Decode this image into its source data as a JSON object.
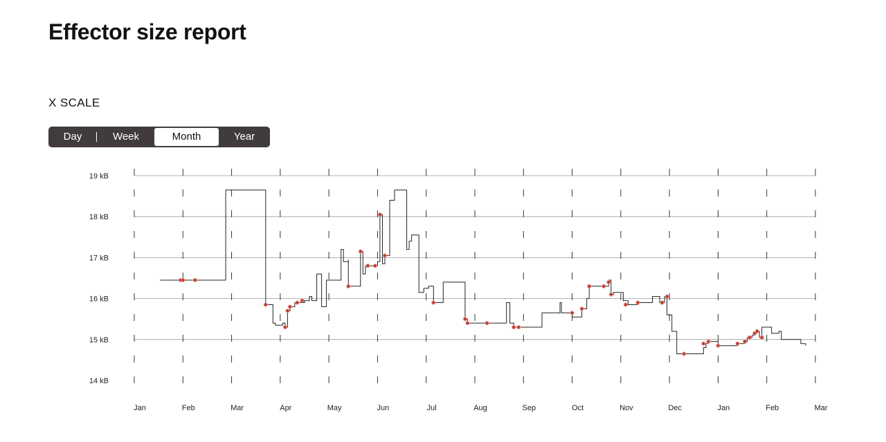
{
  "header": {
    "title": "Effector size report"
  },
  "controls": {
    "scale_label": "X SCALE",
    "options": [
      {
        "label": "Day",
        "active": false
      },
      {
        "label": "Week",
        "active": false
      },
      {
        "label": "Month",
        "active": true
      },
      {
        "label": "Year",
        "active": false
      }
    ]
  },
  "chart_data": {
    "type": "line",
    "x_ticks": [
      "Jan",
      "Feb",
      "Mar",
      "Apr",
      "May",
      "Jun",
      "Jul",
      "Aug",
      "Sep",
      "Oct",
      "Nov",
      "Dec",
      "Jan",
      "Feb",
      "Mar"
    ],
    "y_ticks": [
      {
        "value": 19,
        "label": "19 kB"
      },
      {
        "value": 18,
        "label": "18 kB"
      },
      {
        "value": 17,
        "label": "17 kB"
      },
      {
        "value": 16,
        "label": "16 kB"
      },
      {
        "value": 15,
        "label": "15 kB"
      },
      {
        "value": 14,
        "label": "14 kB"
      }
    ],
    "xlim": [
      0,
      14
    ],
    "ylim": [
      14,
      19
    ],
    "grid": true,
    "colors": {
      "line": "#222222",
      "point": "#c0392b",
      "grid": "#999999"
    },
    "series": [
      {
        "values": [
          [
            0.53,
            16.45
          ],
          [
            0.95,
            16.45
          ],
          [
            1.0,
            16.45
          ],
          [
            1.25,
            16.45
          ],
          [
            1.85,
            16.45
          ],
          [
            1.88,
            18.65
          ],
          [
            2.6,
            18.65
          ],
          [
            2.7,
            15.85
          ],
          [
            2.85,
            15.4
          ],
          [
            2.9,
            15.35
          ],
          [
            3.05,
            15.4
          ],
          [
            3.1,
            15.3
          ],
          [
            3.15,
            15.7
          ],
          [
            3.2,
            15.8
          ],
          [
            3.3,
            15.9
          ],
          [
            3.4,
            15.9
          ],
          [
            3.5,
            15.95
          ],
          [
            3.6,
            16.05
          ],
          [
            3.65,
            15.95
          ],
          [
            3.75,
            16.6
          ],
          [
            3.85,
            15.8
          ],
          [
            3.95,
            16.45
          ],
          [
            4.15,
            16.45
          ],
          [
            4.25,
            17.2
          ],
          [
            4.3,
            16.9
          ],
          [
            4.4,
            16.95
          ],
          [
            4.4,
            16.3
          ],
          [
            4.55,
            16.3
          ],
          [
            4.65,
            17.15
          ],
          [
            4.7,
            16.6
          ],
          [
            4.75,
            16.8
          ],
          [
            4.95,
            16.8
          ],
          [
            5.0,
            16.9
          ],
          [
            5.05,
            18.05
          ],
          [
            5.1,
            16.85
          ],
          [
            5.15,
            17.05
          ],
          [
            5.2,
            17.05
          ],
          [
            5.25,
            18.4
          ],
          [
            5.35,
            18.65
          ],
          [
            5.6,
            17.2
          ],
          [
            5.65,
            17.4
          ],
          [
            5.7,
            17.55
          ],
          [
            5.8,
            17.55
          ],
          [
            5.85,
            16.15
          ],
          [
            5.95,
            16.25
          ],
          [
            6.05,
            16.3
          ],
          [
            6.15,
            15.9
          ],
          [
            6.35,
            15.9
          ],
          [
            6.35,
            16.4
          ],
          [
            6.7,
            16.4
          ],
          [
            6.8,
            15.5
          ],
          [
            6.85,
            15.4
          ],
          [
            7.05,
            15.4
          ],
          [
            7.55,
            15.4
          ],
          [
            7.65,
            15.9
          ],
          [
            7.72,
            15.4
          ],
          [
            7.8,
            15.3
          ],
          [
            8.0,
            15.3
          ],
          [
            8.35,
            15.3
          ],
          [
            8.38,
            15.65
          ],
          [
            8.7,
            15.65
          ],
          [
            8.75,
            15.9
          ],
          [
            8.78,
            15.65
          ],
          [
            8.9,
            15.65
          ],
          [
            9.0,
            15.55
          ],
          [
            9.1,
            15.55
          ],
          [
            9.2,
            15.75
          ],
          [
            9.3,
            16.0
          ],
          [
            9.35,
            16.3
          ],
          [
            9.6,
            16.3
          ],
          [
            9.7,
            16.3
          ],
          [
            9.75,
            16.45
          ],
          [
            9.8,
            16.1
          ],
          [
            9.85,
            16.15
          ],
          [
            9.95,
            16.15
          ],
          [
            10.05,
            15.95
          ],
          [
            10.15,
            15.85
          ],
          [
            10.3,
            15.85
          ],
          [
            10.35,
            15.9
          ],
          [
            10.5,
            15.9
          ],
          [
            10.65,
            16.05
          ],
          [
            10.8,
            15.9
          ],
          [
            10.9,
            16.05
          ],
          [
            10.95,
            15.6
          ],
          [
            11.05,
            15.2
          ],
          [
            11.15,
            14.65
          ],
          [
            11.3,
            14.65
          ],
          [
            11.6,
            14.65
          ],
          [
            11.7,
            14.8
          ],
          [
            11.75,
            14.9
          ],
          [
            11.8,
            14.95
          ],
          [
            11.9,
            14.95
          ],
          [
            12.0,
            14.85
          ],
          [
            12.2,
            14.85
          ],
          [
            12.4,
            14.9
          ],
          [
            12.5,
            14.9
          ],
          [
            12.55,
            14.95
          ],
          [
            12.6,
            15.05
          ],
          [
            12.7,
            15.1
          ],
          [
            12.75,
            15.15
          ],
          [
            12.8,
            15.2
          ],
          [
            12.85,
            15.05
          ],
          [
            12.9,
            15.3
          ],
          [
            13.1,
            15.15
          ],
          [
            13.25,
            15.2
          ],
          [
            13.3,
            15.0
          ],
          [
            13.5,
            15.0
          ],
          [
            13.7,
            14.9
          ],
          [
            13.8,
            14.85
          ]
        ],
        "highlights": [
          [
            0.95,
            16.45
          ],
          [
            1.0,
            16.45
          ],
          [
            1.25,
            16.45
          ],
          [
            2.7,
            15.85
          ],
          [
            3.1,
            15.3
          ],
          [
            3.15,
            15.7
          ],
          [
            3.2,
            15.8
          ],
          [
            3.35,
            15.9
          ],
          [
            3.45,
            15.95
          ],
          [
            4.4,
            16.3
          ],
          [
            4.65,
            17.15
          ],
          [
            4.8,
            16.8
          ],
          [
            4.95,
            16.8
          ],
          [
            5.05,
            18.05
          ],
          [
            5.15,
            17.05
          ],
          [
            6.15,
            15.9
          ],
          [
            6.8,
            15.5
          ],
          [
            6.85,
            15.4
          ],
          [
            7.25,
            15.4
          ],
          [
            7.8,
            15.3
          ],
          [
            7.9,
            15.3
          ],
          [
            9.0,
            15.65
          ],
          [
            9.2,
            15.75
          ],
          [
            9.35,
            16.3
          ],
          [
            9.65,
            16.3
          ],
          [
            9.75,
            16.4
          ],
          [
            9.8,
            16.1
          ],
          [
            10.1,
            15.85
          ],
          [
            10.35,
            15.9
          ],
          [
            10.85,
            15.9
          ],
          [
            10.95,
            16.05
          ],
          [
            11.3,
            14.65
          ],
          [
            11.7,
            14.9
          ],
          [
            11.8,
            14.95
          ],
          [
            12.0,
            14.85
          ],
          [
            12.4,
            14.9
          ],
          [
            12.55,
            14.95
          ],
          [
            12.65,
            15.05
          ],
          [
            12.75,
            15.15
          ],
          [
            12.8,
            15.2
          ],
          [
            12.9,
            15.05
          ]
        ]
      }
    ]
  }
}
